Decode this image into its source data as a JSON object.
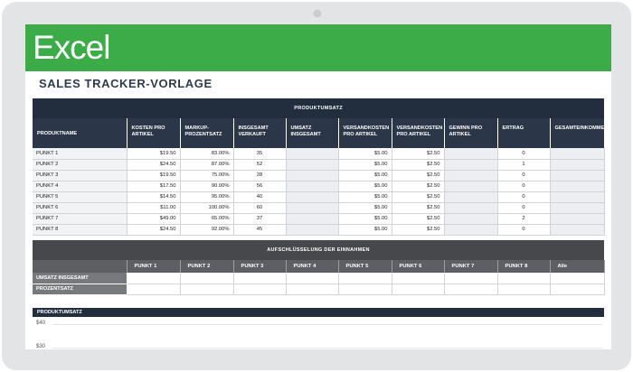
{
  "app": {
    "name": "Excel"
  },
  "page": {
    "title": "SALES TRACKER-VORLAGE"
  },
  "product_table": {
    "section_title": "PRODUKTUMSATZ",
    "columns": [
      "PRODUKTNAME",
      "KOSTEN PRO ARTIKEL",
      "MARKUP-PROZENTSATZ",
      "INSGESAMT VERKAUFT",
      "UMSATZ INSGESAMT",
      "VERSANDKOSTEN PRO ARTIKEL",
      "VERSANDKOSTEN PRO ARTIKEL",
      "GEWINN PRO ARTIKEL",
      "ERTRAG",
      "GESAMTEINKOMMEN"
    ],
    "rows": [
      {
        "name": "PUNKT 1",
        "cost": "$19.50",
        "markup": "83.00%",
        "sold": "35",
        "total": "",
        "ship1": "$5.00",
        "ship2": "$2.50",
        "profit": "",
        "yield": "0",
        "income": ""
      },
      {
        "name": "PUNKT 2",
        "cost": "$24.50",
        "markup": "87.00%",
        "sold": "52",
        "total": "",
        "ship1": "$5.00",
        "ship2": "$2.50",
        "profit": "",
        "yield": "1",
        "income": ""
      },
      {
        "name": "PUNKT 3",
        "cost": "$19.50",
        "markup": "75.00%",
        "sold": "28",
        "total": "",
        "ship1": "$5.00",
        "ship2": "$2.50",
        "profit": "",
        "yield": "0",
        "income": ""
      },
      {
        "name": "PUNKT 4",
        "cost": "$17.50",
        "markup": "90.00%",
        "sold": "56",
        "total": "",
        "ship1": "$5.00",
        "ship2": "$2.50",
        "profit": "",
        "yield": "0",
        "income": ""
      },
      {
        "name": "PUNKT 5",
        "cost": "$14.50",
        "markup": "95.00%",
        "sold": "40",
        "total": "",
        "ship1": "$5.00",
        "ship2": "$2.50",
        "profit": "",
        "yield": "0",
        "income": ""
      },
      {
        "name": "PUNKT 6",
        "cost": "$11.00",
        "markup": "100.00%",
        "sold": "60",
        "total": "",
        "ship1": "$5.00",
        "ship2": "$2.50",
        "profit": "",
        "yield": "0",
        "income": ""
      },
      {
        "name": "PUNKT 7",
        "cost": "$49.00",
        "markup": "65.00%",
        "sold": "37",
        "total": "",
        "ship1": "$5.00",
        "ship2": "$2.50",
        "profit": "",
        "yield": "2",
        "income": ""
      },
      {
        "name": "PUNKT 8",
        "cost": "$24.50",
        "markup": "92.00%",
        "sold": "45",
        "total": "",
        "ship1": "$5.00",
        "ship2": "$2.50",
        "profit": "",
        "yield": "0",
        "income": ""
      }
    ]
  },
  "breakdown_table": {
    "section_title": "AUFSCHLÜSSELUNG DER EINNAHMEN",
    "columns": [
      "PUNKT 1",
      "PUNKT 2",
      "PUNKT 3",
      "PUNKT 4",
      "PUNKT 5",
      "PUNKT 6",
      "PUNKT 7",
      "PUNKT 8",
      "Alle"
    ],
    "rows": [
      {
        "label": "UMSATZ INSGESAMT"
      },
      {
        "label": "PROZENTSATZ"
      }
    ]
  },
  "chart": {
    "title": "PRODUKTUMSATZ",
    "y_tick_top": "$40",
    "y_tick_next": "$30"
  },
  "colors": {
    "excel_green": "#3cac48",
    "header_navy": "#2b3648",
    "breakdown_gray": "#5d5f63"
  }
}
